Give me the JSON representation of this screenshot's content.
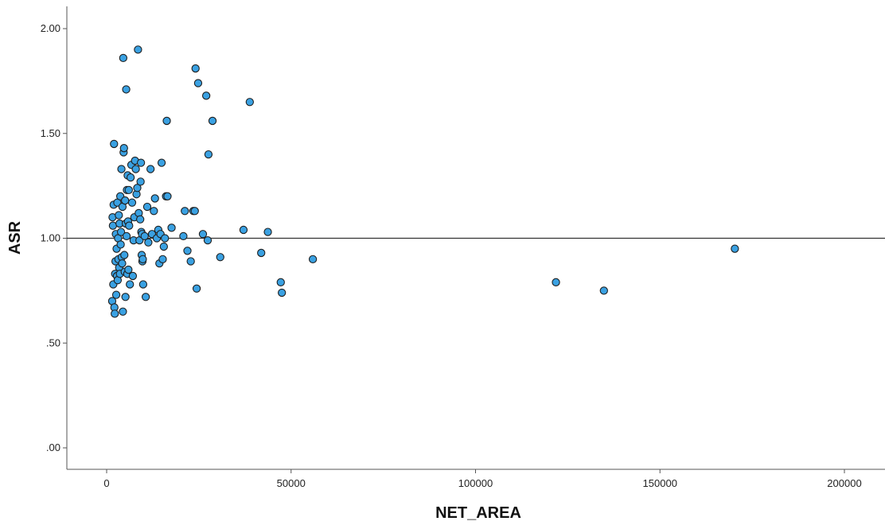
{
  "chart_data": {
    "type": "scatter",
    "title": "",
    "xlabel": "NET_AREA",
    "ylabel": "ASR",
    "xlim": [
      -10000,
      210000
    ],
    "ylim": [
      -0.1,
      2.1
    ],
    "x_ticks": [
      0,
      50000,
      100000,
      150000,
      200000
    ],
    "x_tick_labels": [
      "0",
      "50000",
      "100000",
      "150000",
      "200000"
    ],
    "y_ticks": [
      0,
      0.5,
      1.0,
      1.5,
      2.0
    ],
    "y_tick_labels": [
      ".00",
      ".50",
      "1.00",
      "1.50",
      "2.00"
    ],
    "reference_line_y": 1.0,
    "grid": false,
    "marker_color": "#3aa1e2",
    "marker_edge_color": "#1e1e1e",
    "points": [
      [
        1500,
        0.7
      ],
      [
        1600,
        1.1
      ],
      [
        1700,
        1.06
      ],
      [
        1800,
        0.78
      ],
      [
        1900,
        1.16
      ],
      [
        2000,
        1.45
      ],
      [
        2100,
        0.67
      ],
      [
        2200,
        0.64
      ],
      [
        2300,
        0.83
      ],
      [
        2400,
        0.89
      ],
      [
        2500,
        1.02
      ],
      [
        2600,
        0.73
      ],
      [
        2700,
        0.95
      ],
      [
        2800,
        0.82
      ],
      [
        2900,
        1.17
      ],
      [
        3000,
        0.8
      ],
      [
        3100,
        1.0
      ],
      [
        3200,
        0.9
      ],
      [
        3300,
        1.11
      ],
      [
        3400,
        0.86
      ],
      [
        3500,
        1.07
      ],
      [
        3600,
        0.83
      ],
      [
        3700,
        1.2
      ],
      [
        3800,
        0.97
      ],
      [
        3900,
        1.03
      ],
      [
        4000,
        1.33
      ],
      [
        4100,
        0.91
      ],
      [
        4200,
        0.88
      ],
      [
        4300,
        1.15
      ],
      [
        4400,
        0.65
      ],
      [
        4500,
        1.86
      ],
      [
        4600,
        1.41
      ],
      [
        4700,
        1.43
      ],
      [
        4800,
        0.92
      ],
      [
        4900,
        0.84
      ],
      [
        5000,
        1.18
      ],
      [
        5100,
        0.72
      ],
      [
        5200,
        1.07
      ],
      [
        5300,
        1.71
      ],
      [
        5400,
        1.01
      ],
      [
        5500,
        1.23
      ],
      [
        5600,
        0.83
      ],
      [
        5700,
        1.3
      ],
      [
        5800,
        1.08
      ],
      [
        5900,
        0.85
      ],
      [
        6000,
        1.23
      ],
      [
        6100,
        1.06
      ],
      [
        6300,
        0.78
      ],
      [
        6500,
        1.29
      ],
      [
        6700,
        1.35
      ],
      [
        6900,
        1.17
      ],
      [
        7100,
        0.82
      ],
      [
        7300,
        0.99
      ],
      [
        7500,
        1.1
      ],
      [
        7700,
        1.37
      ],
      [
        7900,
        1.33
      ],
      [
        8100,
        1.21
      ],
      [
        8300,
        1.24
      ],
      [
        8500,
        1.9
      ],
      [
        8700,
        1.12
      ],
      [
        8900,
        0.99
      ],
      [
        9100,
        1.09
      ],
      [
        9200,
        1.27
      ],
      [
        9300,
        1.36
      ],
      [
        9400,
        1.03
      ],
      [
        9500,
        0.92
      ],
      [
        9600,
        1.02
      ],
      [
        9700,
        0.89
      ],
      [
        9800,
        0.9
      ],
      [
        9900,
        0.78
      ],
      [
        10300,
        1.01
      ],
      [
        10600,
        0.72
      ],
      [
        11000,
        1.15
      ],
      [
        11300,
        0.98
      ],
      [
        11900,
        1.33
      ],
      [
        12300,
        1.02
      ],
      [
        12800,
        1.13
      ],
      [
        13100,
        1.19
      ],
      [
        13600,
        1.0
      ],
      [
        14000,
        1.04
      ],
      [
        14300,
        0.88
      ],
      [
        14600,
        1.02
      ],
      [
        14900,
        1.36
      ],
      [
        15200,
        0.9
      ],
      [
        15500,
        0.96
      ],
      [
        15800,
        1.0
      ],
      [
        16100,
        1.2
      ],
      [
        16300,
        1.56
      ],
      [
        16500,
        1.2
      ],
      [
        17600,
        1.05
      ],
      [
        20800,
        1.01
      ],
      [
        21200,
        1.13
      ],
      [
        21900,
        0.94
      ],
      [
        22800,
        0.89
      ],
      [
        23500,
        1.13
      ],
      [
        23900,
        1.13
      ],
      [
        24100,
        1.81
      ],
      [
        24400,
        0.76
      ],
      [
        24800,
        1.74
      ],
      [
        26100,
        1.02
      ],
      [
        27000,
        1.68
      ],
      [
        27400,
        0.99
      ],
      [
        27600,
        1.4
      ],
      [
        28700,
        1.56
      ],
      [
        30800,
        0.91
      ],
      [
        37100,
        1.04
      ],
      [
        38800,
        1.65
      ],
      [
        41900,
        0.93
      ],
      [
        43700,
        1.03
      ],
      [
        47200,
        0.79
      ],
      [
        47500,
        0.74
      ],
      [
        55900,
        0.9
      ],
      [
        121800,
        0.79
      ],
      [
        134800,
        0.75
      ],
      [
        170300,
        0.95
      ]
    ]
  }
}
